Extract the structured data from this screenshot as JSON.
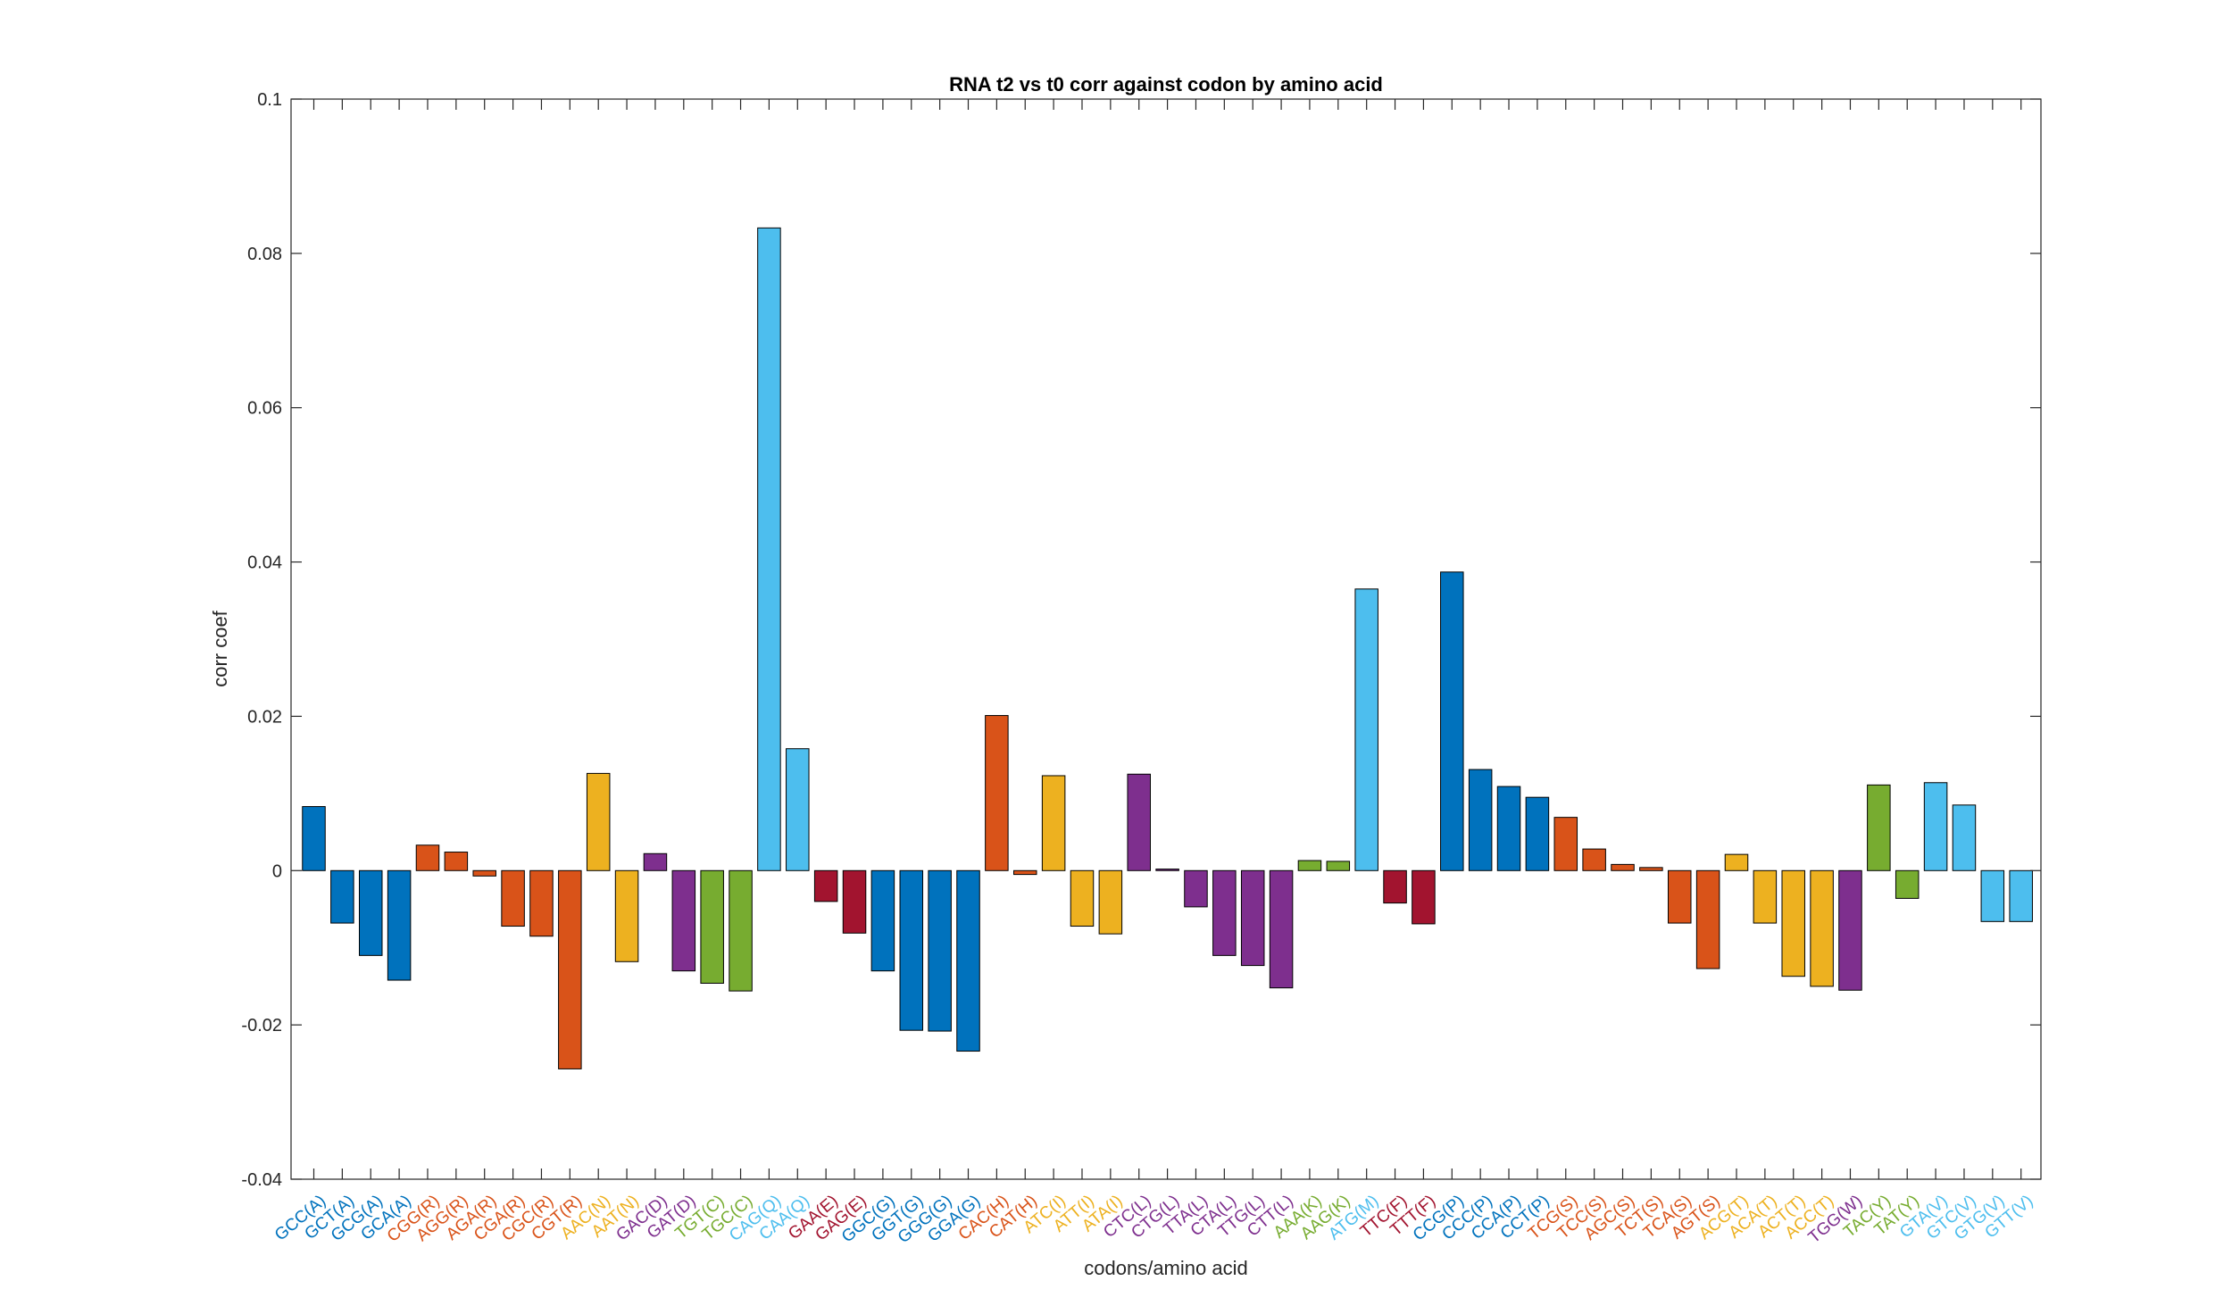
{
  "chart_data": {
    "type": "bar",
    "title": "RNA t2 vs t0 corr against codon by amino acid",
    "xlabel": "codons/amino acid",
    "ylabel": "corr coef",
    "ylim": [
      -0.04,
      0.1
    ],
    "yticks": [
      -0.04,
      -0.02,
      0,
      0.02,
      0.04,
      0.06,
      0.08,
      0.1
    ],
    "ytick_labels": [
      "-0.04",
      "-0.02",
      "0",
      "0.02",
      "0.04",
      "0.06",
      "0.08",
      "0.1"
    ],
    "grid": false,
    "categories": [
      "GCC(A)",
      "GCT(A)",
      "GCG(A)",
      "GCA(A)",
      "CGG(R)",
      "AGG(R)",
      "AGA(R)",
      "CGA(R)",
      "CGC(R)",
      "CGT(R)",
      "AAC(N)",
      "AAT(N)",
      "GAC(D)",
      "GAT(D)",
      "TGT(C)",
      "TGC(C)",
      "CAG(Q)",
      "CAA(Q)",
      "GAA(E)",
      "GAG(E)",
      "GGC(G)",
      "GGT(G)",
      "GGG(G)",
      "GGA(G)",
      "CAC(H)",
      "CAT(H)",
      "ATC(I)",
      "ATT(I)",
      "ATA(I)",
      "CTC(L)",
      "CTG(L)",
      "TTA(L)",
      "CTA(L)",
      "TTG(L)",
      "CTT(L)",
      "AAA(K)",
      "AAG(K)",
      "ATG(M)",
      "TTC(F)",
      "TTT(F)",
      "CCG(P)",
      "CCC(P)",
      "CCA(P)",
      "CCT(P)",
      "TCG(S)",
      "TCC(S)",
      "AGC(S)",
      "TCT(S)",
      "TCA(S)",
      "AGT(S)",
      "ACG(T)",
      "ACA(T)",
      "ACT(T)",
      "ACC(T)",
      "TGG(W)",
      "TAC(Y)",
      "TAT(Y)",
      "GTA(V)",
      "GTC(V)",
      "GTG(V)",
      "GTT(V)"
    ],
    "values": [
      0.0083,
      -0.0068,
      -0.011,
      -0.0142,
      0.0033,
      0.0024,
      -0.0007,
      -0.0072,
      -0.0085,
      -0.0257,
      0.0126,
      -0.0118,
      0.0022,
      -0.013,
      -0.0146,
      -0.0156,
      0.0833,
      0.0158,
      -0.004,
      -0.0081,
      -0.013,
      -0.0207,
      -0.0208,
      -0.0234,
      0.0201,
      -0.0005,
      0.0123,
      -0.0072,
      -0.0082,
      0.0125,
      0.0002,
      -0.0047,
      -0.011,
      -0.0123,
      -0.0152,
      0.0013,
      0.0012,
      0.0365,
      -0.0042,
      -0.0069,
      0.0387,
      0.0131,
      0.0109,
      0.0095,
      0.0069,
      0.0028,
      0.0008,
      0.0004,
      -0.0068,
      -0.0127,
      0.0021,
      -0.0068,
      -0.0137,
      -0.015,
      -0.0155,
      0.0111,
      -0.0036,
      0.0114,
      0.0085,
      -0.0066,
      -0.0066
    ],
    "amino_acid_colors": {
      "A": "#0072BD",
      "R": "#D95319",
      "N": "#EDB120",
      "D": "#7E2F8E",
      "C": "#77AC30",
      "Q": "#4DBEEE",
      "E": "#A2142F",
      "G": "#0072BD",
      "H": "#D95319",
      "I": "#EDB120",
      "L": "#7E2F8E",
      "K": "#77AC30",
      "M": "#4DBEEE",
      "F": "#A2142F",
      "P": "#0072BD",
      "S": "#D95319",
      "T": "#EDB120",
      "W": "#7E2F8E",
      "Y": "#77AC30",
      "V": "#4DBEEE"
    }
  }
}
